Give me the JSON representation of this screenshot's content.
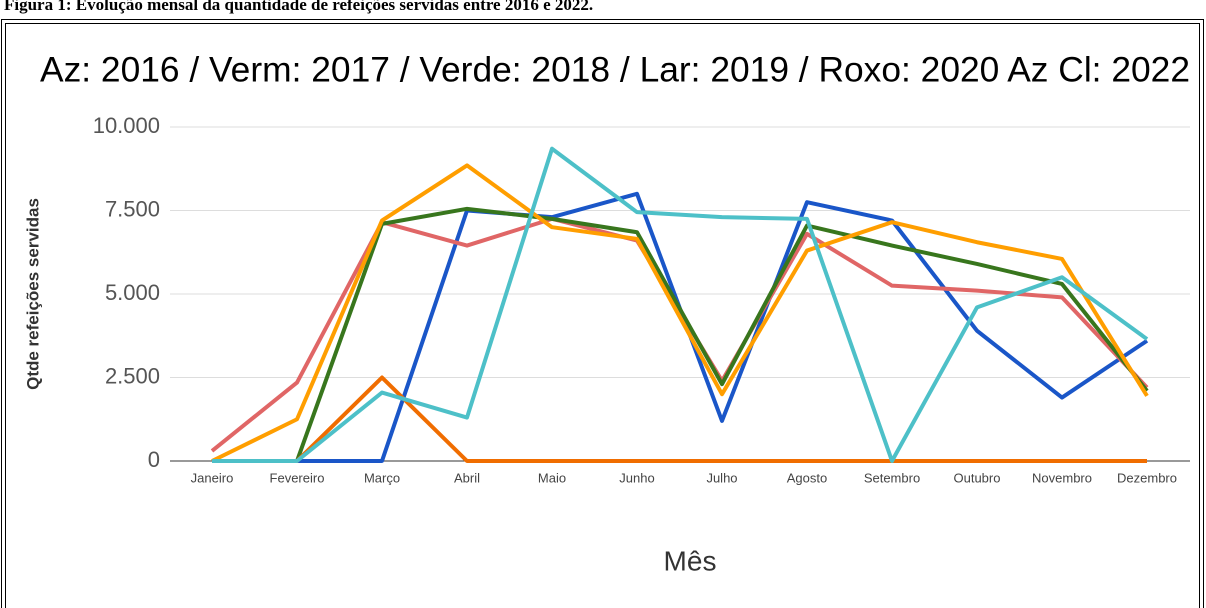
{
  "caption": "Figura 1: Evolução mensal da quantidade de refeições servidas entre 2016 e 2022.",
  "chart_data": {
    "type": "line",
    "title": "Az: 2016 / Verm: 2017  / Verde: 2018 / Lar: 2019 / Roxo: 2020 Az Cl: 2022",
    "x_label": "Mês",
    "y_label": "Qtde refeições servidas",
    "categories": [
      "Janeiro",
      "Fevereiro",
      "Março",
      "Abril",
      "Maio",
      "Junho",
      "Julho",
      "Agosto",
      "Setembro",
      "Outubro",
      "Novembro",
      "Dezembro"
    ],
    "ylim": [
      0,
      10000
    ],
    "yticks": [
      0,
      {
        "value": 2500,
        "label": "2.500"
      },
      {
        "value": 5000,
        "label": "5.000"
      },
      {
        "value": 7500,
        "label": "7.500"
      },
      {
        "value": 10000,
        "label": "10.000"
      }
    ],
    "grid": true,
    "series": [
      {
        "color": "#1a56c8",
        "values": [
          0,
          0,
          0,
          7500,
          7300,
          8000,
          1200,
          7750,
          7200,
          3900,
          1900,
          3600
        ]
      },
      {
        "color": "#e06666",
        "values": [
          300,
          2350,
          7150,
          6450,
          7250,
          6600,
          2400,
          6800,
          5250,
          5100,
          4900,
          2200
        ]
      },
      {
        "color": "#38761d",
        "values": [
          0,
          0,
          7100,
          7550,
          7250,
          6850,
          2300,
          7050,
          6450,
          5900,
          5300,
          2100
        ]
      },
      {
        "color": "#ff9e00",
        "values": [
          0,
          1250,
          7200,
          8850,
          7000,
          6650,
          2000,
          6300,
          7150,
          6550,
          6050,
          1950
        ]
      },
      {
        "color": "#f06d00",
        "values": [
          0,
          0,
          2500,
          0,
          0,
          0,
          0,
          0,
          0,
          0,
          0,
          0
        ]
      },
      {
        "color": "#4dc0c8",
        "values": [
          0,
          0,
          2050,
          1300,
          9350,
          7450,
          7300,
          7250,
          0,
          4600,
          5500,
          3650
        ]
      }
    ]
  }
}
